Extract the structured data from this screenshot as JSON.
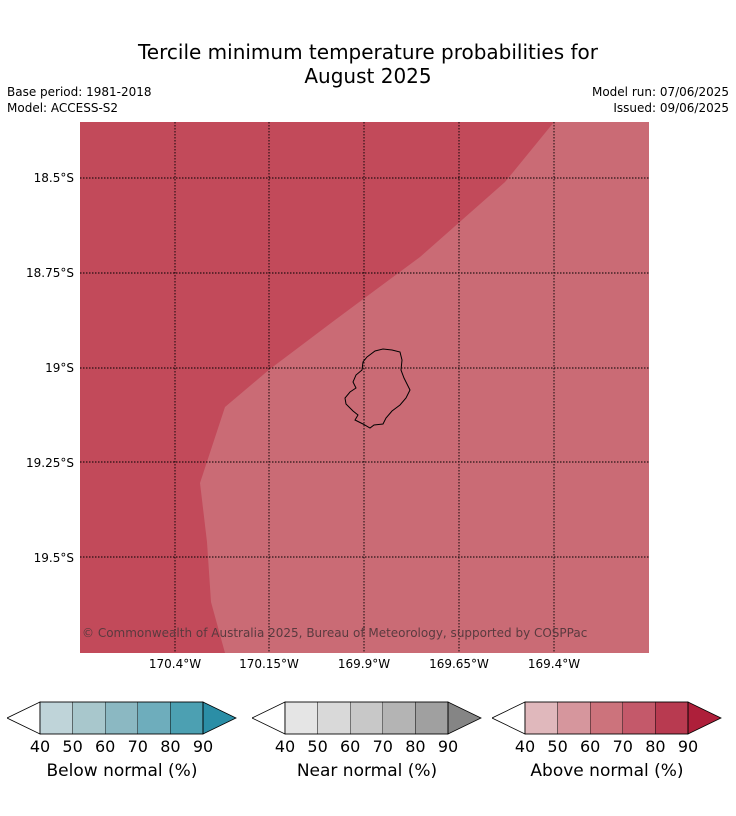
{
  "title_line1": "Tercile minimum temperature probabilities for",
  "title_line2": "August 2025",
  "base_period": "Base period: 1981-2018",
  "model": "Model: ACCESS-S2",
  "model_run": "Model run: 07/06/2025",
  "issued": "Issued: 09/06/2025",
  "map": {
    "lat_labels": [
      "18.5°S",
      "18.75°S",
      "19°S",
      "19.25°S",
      "19.5°S"
    ],
    "lon_labels": [
      "170.4°W",
      "170.15°W",
      "169.9°W",
      "169.65°W",
      "169.4°W"
    ],
    "colors": {
      "above_80_90": "#c24a5a",
      "above_70_80": "#ca6b75"
    },
    "copyright": "© Commonwealth of Australia 2025, Bureau of Meteorology, supported by COSPPac"
  },
  "colorbars": [
    {
      "label": "Below normal (%)",
      "ticks": [
        "40",
        "50",
        "60",
        "70",
        "80",
        "90"
      ],
      "colors": [
        "#ffffff",
        "#bfd4d9",
        "#a8c7cc",
        "#8bb8c2",
        "#6eadbc",
        "#4ca0b2",
        "#2b8ea6"
      ]
    },
    {
      "label": "Near normal (%)",
      "ticks": [
        "40",
        "50",
        "60",
        "70",
        "80",
        "90"
      ],
      "colors": [
        "#ffffff",
        "#e5e5e5",
        "#d9d9d9",
        "#c8c8c8",
        "#b4b4b4",
        "#a0a0a0",
        "#858585"
      ]
    },
    {
      "label": "Above normal (%)",
      "ticks": [
        "40",
        "50",
        "60",
        "70",
        "80",
        "90"
      ],
      "colors": [
        "#ffffff",
        "#e0b8bc",
        "#d6969d",
        "#cc737c",
        "#c4596a",
        "#b83a50",
        "#ae1f3a"
      ]
    }
  ]
}
